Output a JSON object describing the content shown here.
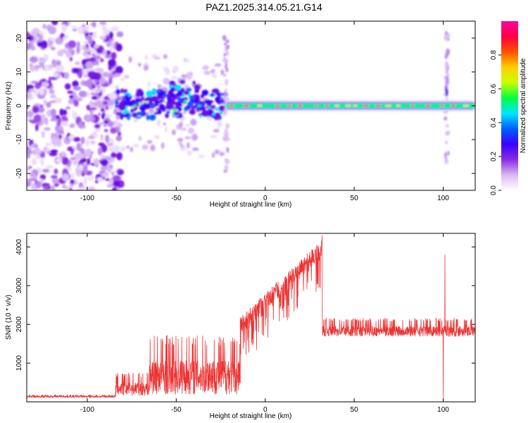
{
  "title": "PAZ1.2025.314.05.21.G14",
  "chart_data": [
    {
      "type": "heatmap",
      "name": "spectrogram",
      "xlabel": "Height of straight line (km)",
      "ylabel": "Frequency (Hz)",
      "xlim": [
        -134,
        118
      ],
      "ylim": [
        -25,
        25
      ],
      "xticks": [
        -100,
        -50,
        0,
        50,
        100
      ],
      "yticks": [
        -20,
        -10,
        0,
        10,
        20
      ],
      "colorbar": {
        "label": "Normalized spectral amplitude",
        "range": [
          0,
          1
        ],
        "ticks": [
          0.0,
          0.2,
          0.4,
          0.6,
          0.8
        ],
        "colormap": [
          "#ffffff",
          "#d9b8f5",
          "#8a2be2",
          "#3a00ff",
          "#0060ff",
          "#00e5ff",
          "#00ff40",
          "#c8ff00",
          "#ffd000",
          "#ff5000",
          "#ff0040",
          "#ff00a0"
        ]
      },
      "features": {
        "noise_region_km": [
          -134,
          -84
        ],
        "signal_line_freq_hz": 0,
        "signal_line_start_km": -22,
        "spike_heights_km": [
          -22,
          102
        ]
      }
    },
    {
      "type": "line",
      "name": "snr",
      "xlabel": "Height of straight line (km)",
      "ylabel": "SNR (10 * v/v)",
      "xlim": [
        -134,
        118
      ],
      "ylim": [
        0,
        4350
      ],
      "xticks": [
        -100,
        -50,
        0,
        50,
        100
      ],
      "yticks": [
        1000,
        2000,
        3000,
        4000
      ],
      "color": "#ee3333",
      "segments": [
        {
          "x_range": [
            -134,
            -84
          ],
          "base": 130,
          "amp": 60
        },
        {
          "x_range": [
            -84,
            -65
          ],
          "base": 300,
          "amp": 500
        },
        {
          "x_range": [
            -65,
            -14
          ],
          "base": 550,
          "amp": 1300
        },
        {
          "x_range": [
            -14,
            32
          ],
          "start": 2200,
          "end": 4200,
          "amp": 900
        },
        {
          "x_range": [
            32,
            118
          ],
          "base": 1800,
          "amp": 400
        }
      ],
      "peaks": [
        {
          "x": 32,
          "y": 4300
        },
        {
          "x": 101,
          "y": 3800
        },
        {
          "x": 100,
          "y": 100
        }
      ]
    }
  ]
}
